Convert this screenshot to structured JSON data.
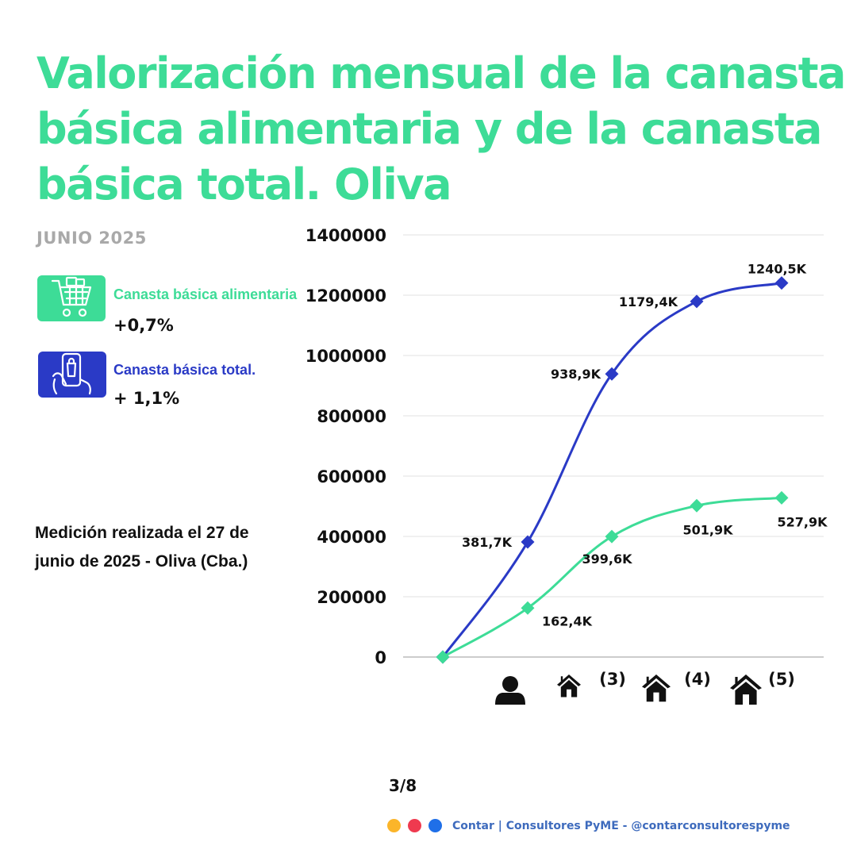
{
  "title": {
    "line1": "Valorización mensual de la canasta",
    "line2": "básica alimentaria y de la canasta",
    "line3": "básica total.  Oliva"
  },
  "date_label": "JUNIO 2025",
  "legend": {
    "cba": {
      "label": "Canasta básica alimentaria",
      "change": "+0,7%",
      "color": "#3ddc97",
      "icon": "shopping-cart-icon"
    },
    "cbt": {
      "label": "Canasta básica total.",
      "change": "+ 1,1%",
      "color": "#2a3ac6",
      "icon": "phone-shopping-icon"
    }
  },
  "note": "Medición realizada el 27 de junio de 2025 - Oliva (Cba.)",
  "chart_data": {
    "type": "line",
    "x": [
      0,
      1,
      2,
      3,
      4
    ],
    "ylim": [
      0,
      1400000
    ],
    "yticks": [
      {
        "value": 0,
        "label": "0"
      },
      {
        "value": 200000,
        "label": "200000"
      },
      {
        "value": 400000,
        "label": "400000"
      },
      {
        "value": 600000,
        "label": "600000"
      },
      {
        "value": 800000,
        "label": "800000"
      },
      {
        "value": 1000000,
        "label": "1000000"
      },
      {
        "value": 1200000,
        "label": "1200000"
      },
      {
        "value": 1400000,
        "label": "1400000"
      }
    ],
    "x_categories": [
      {
        "icon": "person-icon",
        "label": ""
      },
      {
        "icon": "house-icon",
        "label": ""
      },
      {
        "icon": "house-icon",
        "label": "(3)"
      },
      {
        "icon": "house-icon",
        "label": "(4)"
      },
      {
        "icon": "house-icon",
        "label": "(5)"
      }
    ],
    "series": [
      {
        "key": "cbt",
        "color": "#2a3ac6",
        "values": [
          0,
          381700,
          938900,
          1179400,
          1240500
        ],
        "labels": [
          "",
          "381,7K",
          "938,9K",
          "1179,4K",
          "1240,5K"
        ]
      },
      {
        "key": "cba",
        "color": "#3ddc97",
        "values": [
          0,
          162400,
          399600,
          501900,
          527900
        ],
        "labels": [
          "",
          "162,4K",
          "399,6K",
          "501,9K",
          "527,9K"
        ]
      }
    ],
    "grid": true
  },
  "page": "3/8",
  "footer": {
    "dots": [
      "#fbb52a",
      "#ef3a4f",
      "#1f6fe8"
    ],
    "text": "Contar | Consultores PyME - @contarconsultorespyme"
  }
}
